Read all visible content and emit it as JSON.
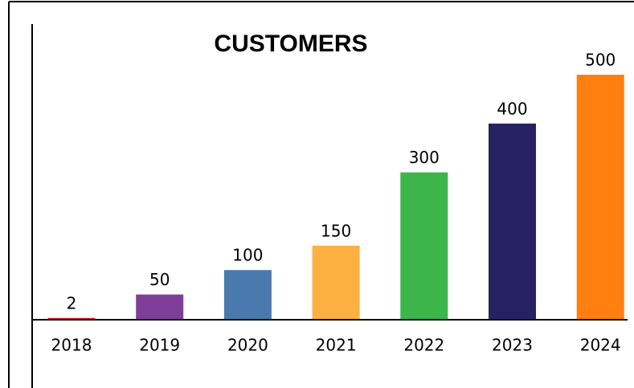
{
  "chart_data": {
    "type": "bar",
    "title": "CUSTOMERS",
    "categories": [
      "2018",
      "2019",
      "2020",
      "2021",
      "2022",
      "2023",
      "2024"
    ],
    "values": [
      2,
      50,
      100,
      150,
      300,
      400,
      500
    ],
    "colors": [
      "#e31e24",
      "#7f3f98",
      "#4a7aad",
      "#fbb040",
      "#3cb54a",
      "#262262",
      "#ff7f0f"
    ]
  }
}
